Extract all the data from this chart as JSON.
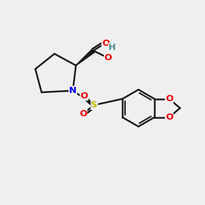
{
  "bg_color": "#efefef",
  "bond_color": "#1a1a1a",
  "bond_width": 1.8,
  "atom_colors": {
    "N": "#0000ee",
    "O": "#ee0000",
    "S": "#bbbb00",
    "H": "#4a8888",
    "C": "#1a1a1a"
  },
  "font_size": 9.5,
  "title": ""
}
